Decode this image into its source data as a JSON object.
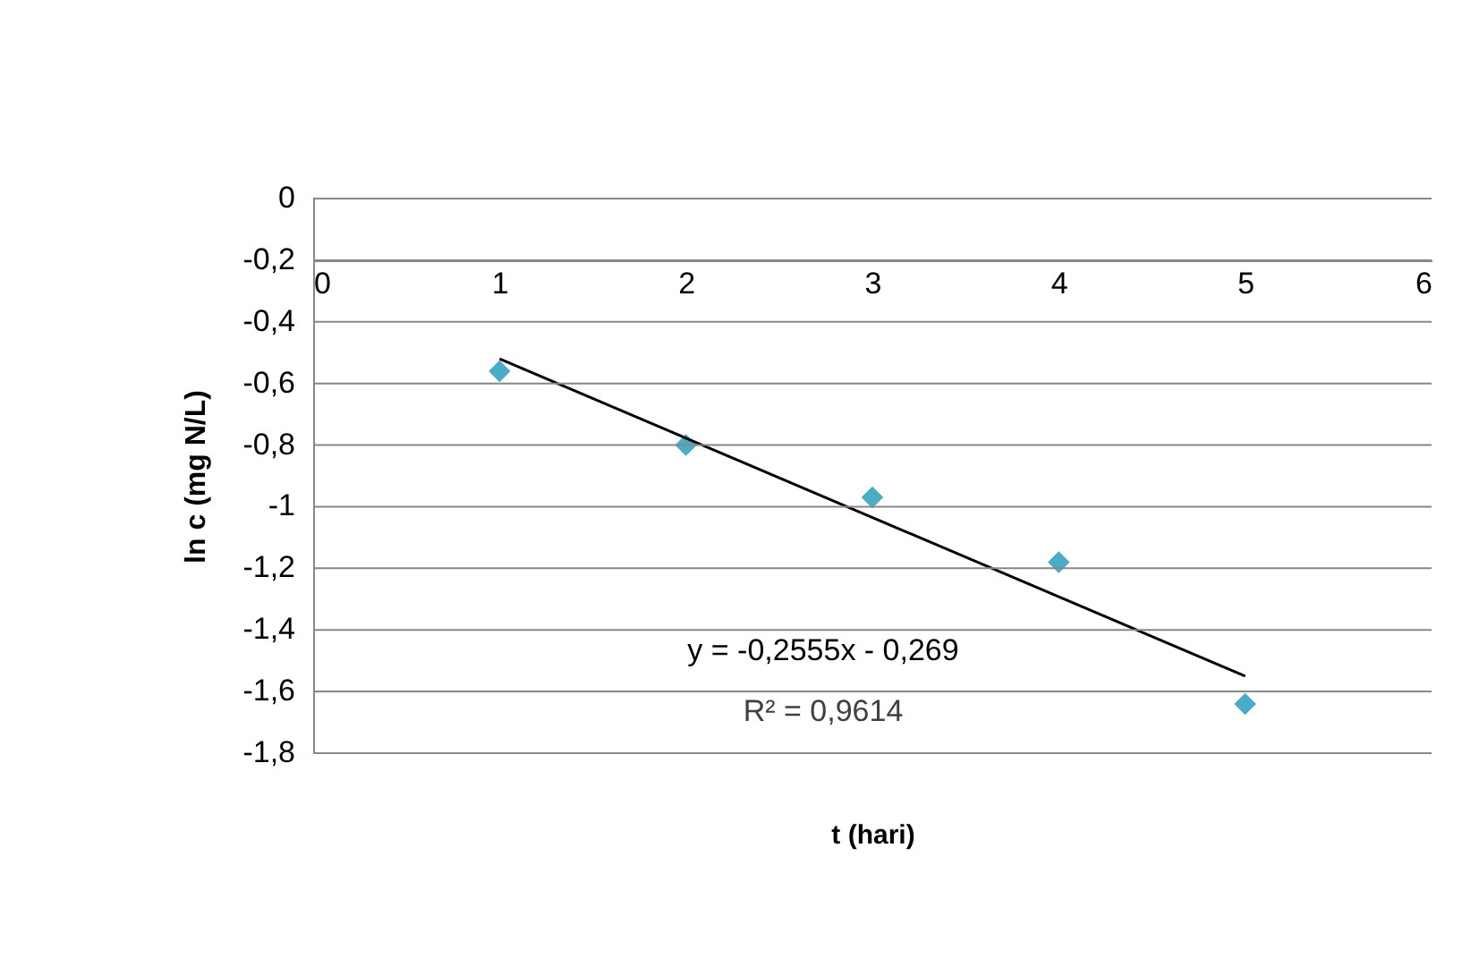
{
  "chart_data": {
    "type": "scatter",
    "xlabel": "t (hari)",
    "ylabel": "ln c (mg N/L)",
    "x": [
      1,
      2,
      3,
      4,
      5
    ],
    "series": [
      {
        "color": "#4bacc6",
        "marker": "diamond",
        "values": [
          -0.56,
          -0.8,
          -0.97,
          -1.18,
          -1.64
        ]
      },
      {
        "type": "line",
        "color": "#000000",
        "x": [
          1,
          5
        ],
        "values": [
          -0.52,
          -1.55
        ]
      }
    ],
    "annotations": [
      "y = -0,2555x - 0,269",
      "R² = 0,9614"
    ],
    "xlim": [
      0,
      6
    ],
    "xticks": [
      0,
      1,
      2,
      3,
      4,
      5,
      6
    ],
    "ylim": [
      -1.8,
      0
    ],
    "yticks": [
      {
        "value": 0,
        "label": "0"
      },
      {
        "value": -0.2,
        "label": "-0,2"
      },
      {
        "value": -0.4,
        "label": "-0,4"
      },
      {
        "value": -0.6,
        "label": "-0,6"
      },
      {
        "value": -0.8,
        "label": "-0,8"
      },
      {
        "value": -1,
        "label": "-1"
      },
      {
        "value": -1.2,
        "label": "-1,2"
      },
      {
        "value": -1.4,
        "label": "-1,4"
      },
      {
        "value": -1.6,
        "label": "-1,6"
      },
      {
        "value": -1.8,
        "label": "-1,8"
      }
    ],
    "grid": "y"
  }
}
